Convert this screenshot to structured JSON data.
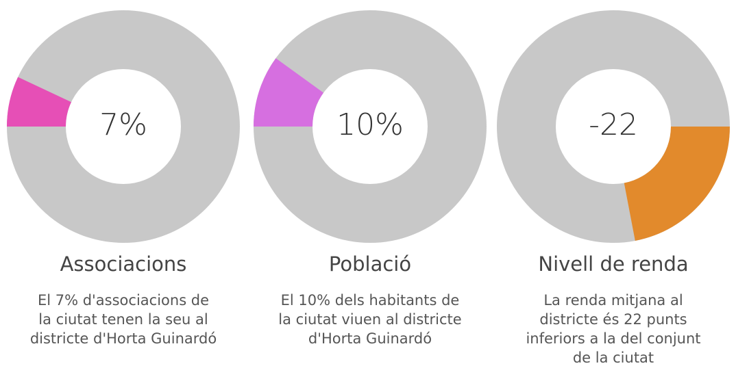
{
  "chart_data": [
    {
      "type": "donut",
      "title": "Associacions",
      "value": 7,
      "value_label": "7%",
      "color": "#e64fb6",
      "description": [
        "El 7% d'associacions de",
        "la ciutat tenen la seu al",
        "districte d'Horta Guinardó"
      ]
    },
    {
      "type": "donut",
      "title": "Població",
      "value": 10,
      "value_label": "10%",
      "color": "#d66fe0",
      "description": [
        "El 10% dels habitants de",
        "la ciutat viuen al districte",
        "d'Horta Guinardó"
      ]
    },
    {
      "type": "donut",
      "title": "Nivell de renda",
      "value": -22,
      "color": "#e28a2c",
      "description": [
        "La renda mitjana al",
        "districte és 22 punts",
        "inferiors a la del conjunt",
        "de la ciutat"
      ]
    }
  ]
}
